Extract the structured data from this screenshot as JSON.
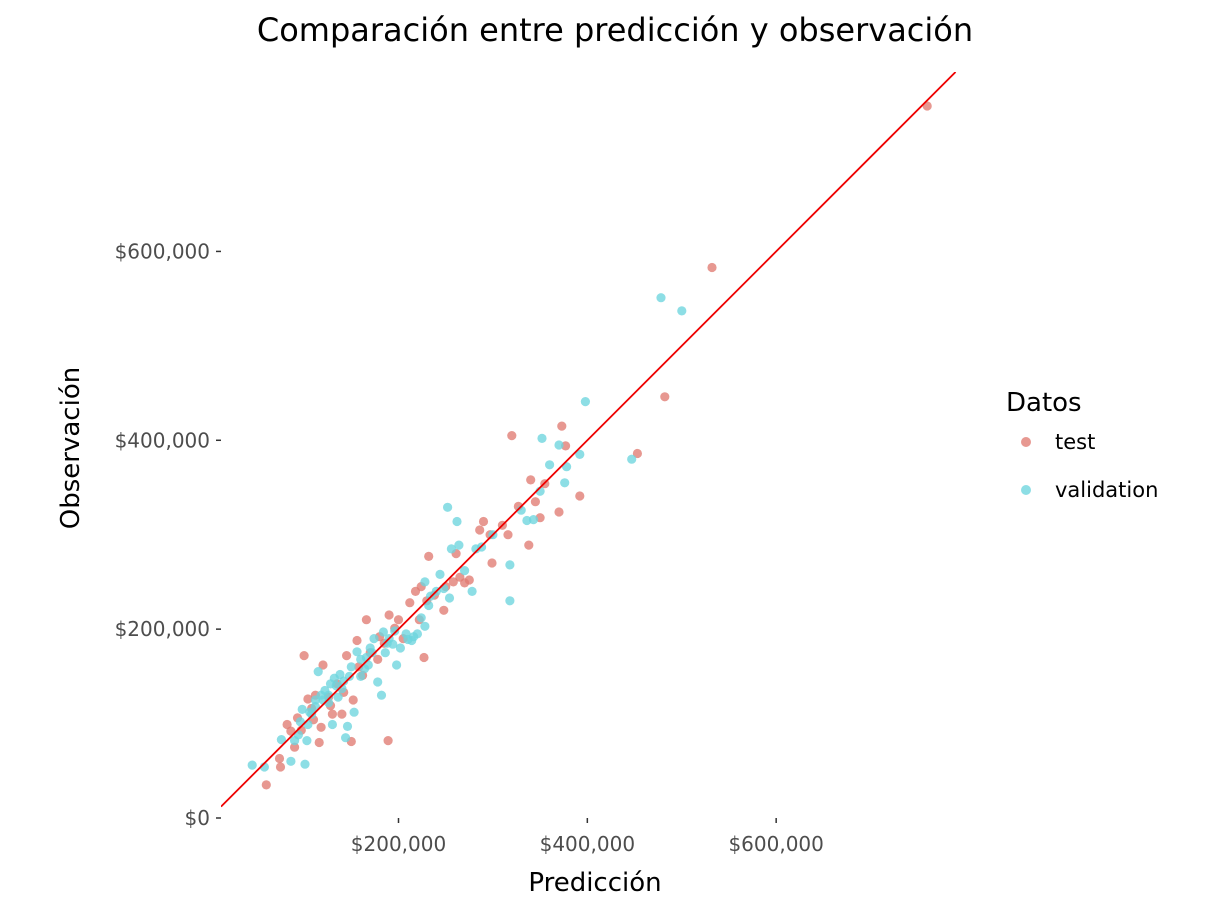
{
  "chart_data": {
    "type": "scatter",
    "title": "Comparación entre predicción y observación",
    "xlabel": "Predicción",
    "ylabel": "Observación",
    "xlim": [
      12000,
      800000
    ],
    "ylim": [
      0,
      790000
    ],
    "x_ticks": [
      {
        "value": 200000,
        "label": "$200,000"
      },
      {
        "value": 400000,
        "label": "$400,000"
      },
      {
        "value": 600000,
        "label": "$600,000"
      }
    ],
    "y_ticks": [
      {
        "value": 0,
        "label": "$0"
      },
      {
        "value": 200000,
        "label": "$200,000"
      },
      {
        "value": 400000,
        "label": "$400,000"
      },
      {
        "value": 600000,
        "label": "$600,000"
      }
    ],
    "grid": false,
    "legend": {
      "title": "Datos",
      "position": "right"
    },
    "reference_line": {
      "type": "identity",
      "color": "#ee0000"
    },
    "series": [
      {
        "name": "test",
        "color": "#e07b72",
        "points": [
          [
            760000,
            754000
          ],
          [
            532000,
            583000
          ],
          [
            482000,
            446000
          ],
          [
            453000,
            386000
          ],
          [
            320000,
            405000
          ],
          [
            373000,
            415000
          ],
          [
            377000,
            394000
          ],
          [
            370000,
            324000
          ],
          [
            392000,
            341000
          ],
          [
            355000,
            354000
          ],
          [
            340000,
            358000
          ],
          [
            345000,
            335000
          ],
          [
            338000,
            289000
          ],
          [
            327000,
            330000
          ],
          [
            316000,
            300000
          ],
          [
            290000,
            314000
          ],
          [
            297000,
            300000
          ],
          [
            299000,
            270000
          ],
          [
            270000,
            249000
          ],
          [
            261000,
            280000
          ],
          [
            258000,
            250000
          ],
          [
            250000,
            245000
          ],
          [
            248000,
            220000
          ],
          [
            232000,
            277000
          ],
          [
            230000,
            230000
          ],
          [
            224000,
            245000
          ],
          [
            218000,
            240000
          ],
          [
            212000,
            228000
          ],
          [
            200000,
            210000
          ],
          [
            190000,
            215000
          ],
          [
            189000,
            82000
          ],
          [
            180000,
            192000
          ],
          [
            178000,
            168000
          ],
          [
            170000,
            175000
          ],
          [
            166000,
            210000
          ],
          [
            158000,
            160000
          ],
          [
            152000,
            125000
          ],
          [
            145000,
            172000
          ],
          [
            150000,
            81000
          ],
          [
            140000,
            110000
          ],
          [
            135000,
            142000
          ],
          [
            130000,
            110000
          ],
          [
            126000,
            128000
          ],
          [
            120000,
            162000
          ],
          [
            118000,
            96000
          ],
          [
            116000,
            80000
          ],
          [
            112000,
            130000
          ],
          [
            108000,
            116000
          ],
          [
            104000,
            126000
          ],
          [
            100000,
            172000
          ],
          [
            97000,
            93000
          ],
          [
            93000,
            106000
          ],
          [
            90000,
            75000
          ],
          [
            86000,
            92000
          ],
          [
            82000,
            99000
          ],
          [
            75000,
            54000
          ],
          [
            74000,
            63000
          ],
          [
            60000,
            35000
          ],
          [
            156000,
            188000
          ],
          [
            185000,
            185000
          ],
          [
            205000,
            190000
          ],
          [
            227000,
            170000
          ],
          [
            265000,
            255000
          ],
          [
            275000,
            252000
          ],
          [
            238000,
            236000
          ],
          [
            196000,
            201000
          ],
          [
            162000,
            151000
          ],
          [
            142000,
            133000
          ],
          [
            128000,
            119000
          ],
          [
            110000,
            104000
          ],
          [
            350000,
            318000
          ],
          [
            310000,
            310000
          ],
          [
            286000,
            305000
          ],
          [
            222000,
            210000
          ]
        ]
      },
      {
        "name": "validation",
        "color": "#6dd5de",
        "points": [
          [
            478000,
            551000
          ],
          [
            500000,
            537000
          ],
          [
            398000,
            441000
          ],
          [
            447000,
            380000
          ],
          [
            392000,
            385000
          ],
          [
            370000,
            395000
          ],
          [
            376000,
            355000
          ],
          [
            378000,
            372000
          ],
          [
            360000,
            374000
          ],
          [
            352000,
            402000
          ],
          [
            350000,
            346000
          ],
          [
            343000,
            316000
          ],
          [
            336000,
            315000
          ],
          [
            330000,
            326000
          ],
          [
            318000,
            268000
          ],
          [
            318000,
            230000
          ],
          [
            262000,
            314000
          ],
          [
            252000,
            329000
          ],
          [
            264000,
            289000
          ],
          [
            278000,
            240000
          ],
          [
            300000,
            300000
          ],
          [
            288000,
            287000
          ],
          [
            270000,
            262000
          ],
          [
            254000,
            233000
          ],
          [
            244000,
            258000
          ],
          [
            240000,
            240000
          ],
          [
            234000,
            235000
          ],
          [
            228000,
            250000
          ],
          [
            228000,
            203000
          ],
          [
            224000,
            212000
          ],
          [
            220000,
            195000
          ],
          [
            214000,
            188000
          ],
          [
            208000,
            195000
          ],
          [
            202000,
            180000
          ],
          [
            198000,
            162000
          ],
          [
            194000,
            184000
          ],
          [
            190000,
            190000
          ],
          [
            186000,
            175000
          ],
          [
            182000,
            130000
          ],
          [
            178000,
            144000
          ],
          [
            172000,
            175000
          ],
          [
            168000,
            162000
          ],
          [
            164000,
            158000
          ],
          [
            160000,
            150000
          ],
          [
            156000,
            176000
          ],
          [
            153000,
            112000
          ],
          [
            148000,
            150000
          ],
          [
            146000,
            97000
          ],
          [
            144000,
            85000
          ],
          [
            140000,
            137000
          ],
          [
            136000,
            128000
          ],
          [
            132000,
            148000
          ],
          [
            130000,
            99000
          ],
          [
            126000,
            122000
          ],
          [
            122000,
            135000
          ],
          [
            118000,
            130000
          ],
          [
            115000,
            155000
          ],
          [
            112000,
            125000
          ],
          [
            108000,
            110000
          ],
          [
            104000,
            99000
          ],
          [
            103000,
            82000
          ],
          [
            101000,
            57000
          ],
          [
            98000,
            115000
          ],
          [
            94000,
            88000
          ],
          [
            90000,
            82000
          ],
          [
            86000,
            60000
          ],
          [
            76000,
            83000
          ],
          [
            58000,
            54000
          ],
          [
            45000,
            56000
          ],
          [
            174000,
            190000
          ],
          [
            184000,
            197000
          ],
          [
            196000,
            198000
          ],
          [
            210000,
            189000
          ],
          [
            216000,
            192000
          ],
          [
            150000,
            160000
          ],
          [
            142000,
            145000
          ],
          [
            134000,
            140000
          ],
          [
            126000,
            130000
          ],
          [
            120000,
            125000
          ],
          [
            112000,
            118000
          ],
          [
            166000,
            170000
          ],
          [
            170000,
            180000
          ],
          [
            188000,
            185000
          ],
          [
            232000,
            225000
          ],
          [
            248000,
            243000
          ],
          [
            256000,
            285000
          ],
          [
            282000,
            285000
          ],
          [
            160000,
            168000
          ],
          [
            138000,
            152000
          ],
          [
            128000,
            142000
          ],
          [
            106000,
            112000
          ],
          [
            96000,
            102000
          ]
        ]
      }
    ]
  }
}
